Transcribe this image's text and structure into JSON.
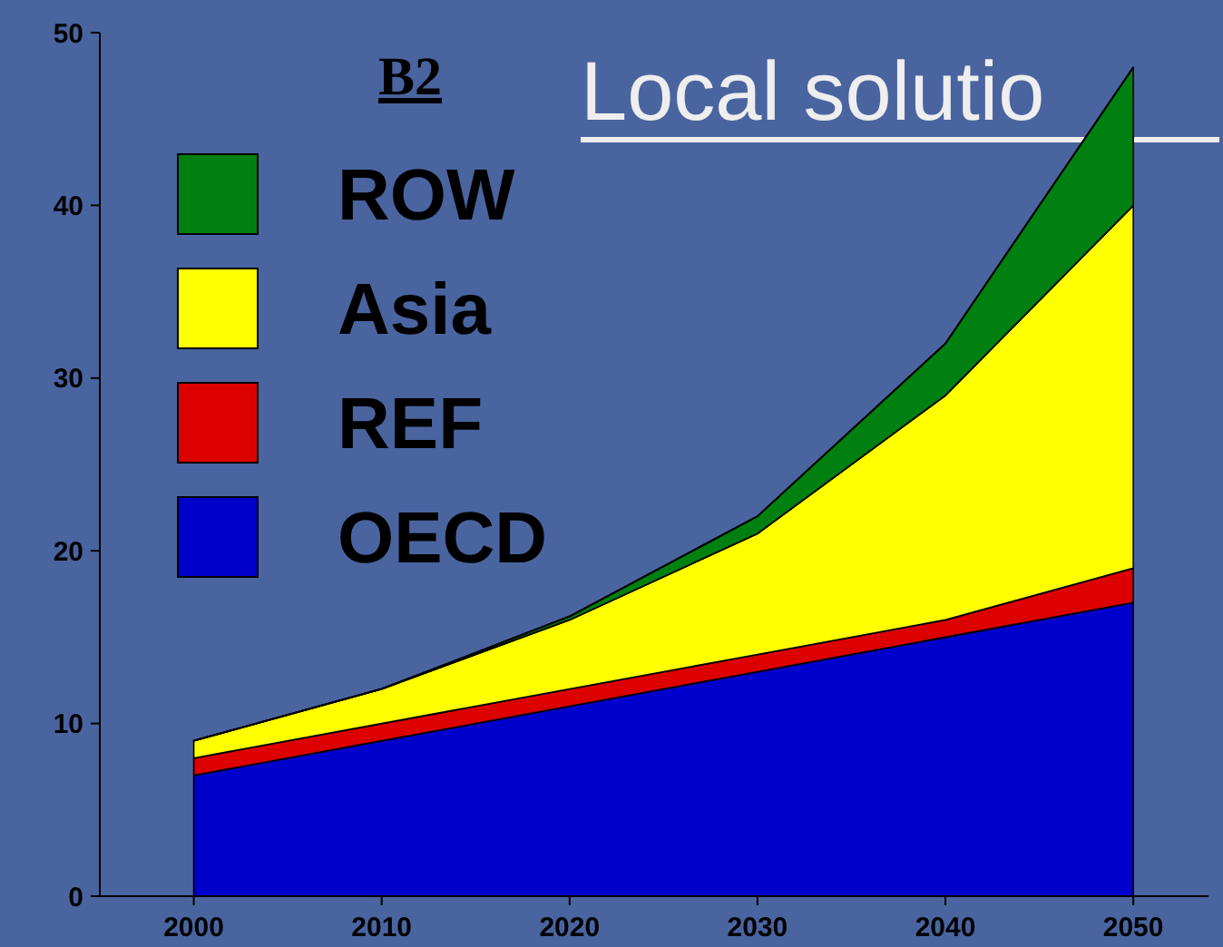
{
  "chart_data": {
    "type": "area",
    "stacked": true,
    "title": "B2",
    "annotations": [
      "Local solutio"
    ],
    "x": [
      2000,
      2010,
      2020,
      2030,
      2040,
      2050
    ],
    "series": [
      {
        "name": "OECD",
        "color": "#0000cc",
        "values": [
          7,
          9,
          11,
          13,
          15,
          17
        ]
      },
      {
        "name": "REF",
        "color": "#dd0000",
        "values": [
          1,
          1,
          1,
          1,
          1,
          2
        ]
      },
      {
        "name": "Asia",
        "color": "#ffff00",
        "values": [
          1,
          2,
          4,
          7,
          13,
          21
        ]
      },
      {
        "name": "ROW",
        "color": "#008010",
        "values": [
          0,
          0,
          0.2,
          1,
          3,
          8
        ]
      }
    ],
    "xlim": [
      1995,
      2054
    ],
    "xticks": [
      2000,
      2010,
      2020,
      2030,
      2040,
      2050
    ],
    "ylim": [
      0,
      50
    ],
    "yticks": [
      0,
      10,
      20,
      30,
      40,
      50
    ],
    "grid": false,
    "legend": "top left"
  }
}
